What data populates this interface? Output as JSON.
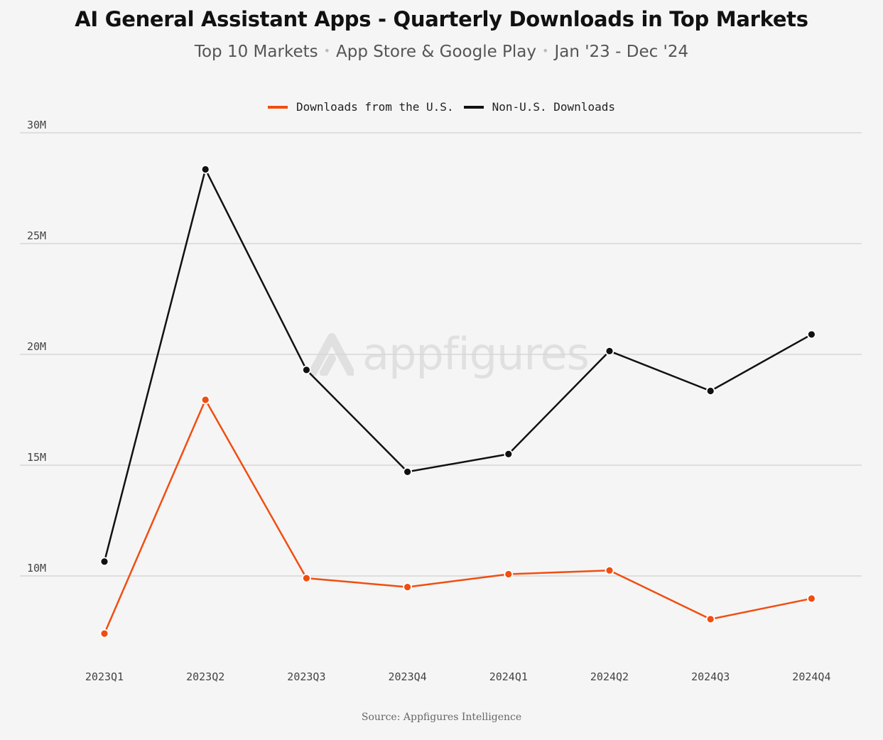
{
  "title": "AI General Assistant Apps - Quarterly Downloads in Top Markets",
  "subtitle": {
    "part1": "Top 10 Markets",
    "part2": "App Store & Google Play",
    "part3": "Jan '23 - Dec '24",
    "separator": "•"
  },
  "source": "Source: Appfigures Intelligence",
  "watermark": "appfigures",
  "colors": {
    "us": "#f04e10",
    "non_us": "#111111",
    "grid": "#d6d6d6",
    "background": "#f5f5f5"
  },
  "chart_data": {
    "type": "line",
    "title": "AI General Assistant Apps - Quarterly Downloads in Top Markets",
    "categories": [
      "2023Q1",
      "2023Q2",
      "2023Q3",
      "2023Q4",
      "2024Q1",
      "2024Q2",
      "2024Q3",
      "2024Q4"
    ],
    "series": [
      {
        "name": "Downloads from the U.S.",
        "color": "#f04e10",
        "values": [
          7.4,
          17.95,
          9.9,
          9.5,
          10.08,
          10.25,
          8.05,
          8.98
        ]
      },
      {
        "name": "Non-U.S. Downloads",
        "color": "#111111",
        "values": [
          10.65,
          28.35,
          19.3,
          14.7,
          15.5,
          20.15,
          18.35,
          20.9
        ]
      }
    ],
    "yticks": [
      10,
      15,
      20,
      25,
      30
    ],
    "ytick_labels": [
      "10M",
      "15M",
      "20M",
      "25M",
      "30M"
    ],
    "ylim": [
      10,
      30
    ],
    "grid": "horizontal",
    "legend_position": "top-center"
  }
}
